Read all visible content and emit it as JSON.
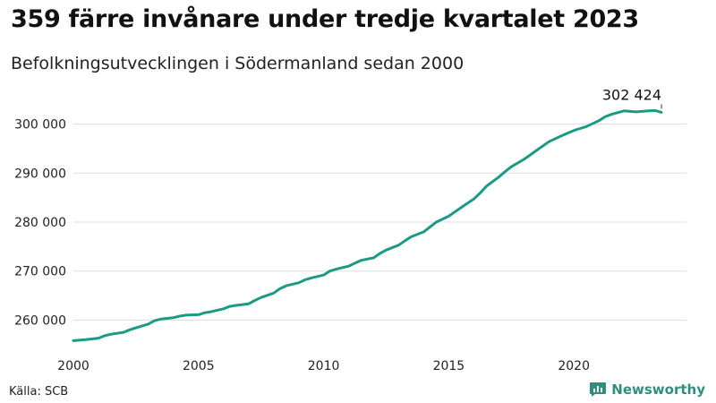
{
  "header": {
    "title": "359 färre invånare under tredje kvartalet 2023",
    "subtitle": "Befolkningsutvecklingen i Södermanland sedan 2000"
  },
  "footer": {
    "source": "Källa: SCB",
    "brand": "Newsworthy"
  },
  "colors": {
    "line": "#1d9a86",
    "grid": "#dddddd",
    "brand": "#2e8f7f"
  },
  "icons": {
    "brand_logo": "bar-chart-speech-bubble-icon"
  },
  "chart_data": {
    "type": "line",
    "title": "359 färre invånare under tredje kvartalet 2023",
    "subtitle": "Befolkningsutvecklingen i Södermanland sedan 2000",
    "xlabel": "",
    "ylabel": "",
    "xlim": [
      2000,
      2024.5
    ],
    "ylim": [
      255500,
      304500
    ],
    "x_ticks": [
      2000,
      2005,
      2010,
      2015,
      2020
    ],
    "y_ticks": [
      260000,
      270000,
      280000,
      290000,
      300000
    ],
    "y_tick_labels": [
      "260 000",
      "270 000",
      "280 000",
      "290 000",
      "300 000"
    ],
    "grid": "horizontal",
    "legend": "none",
    "annotation": {
      "text": "302 424",
      "x": 2023.5,
      "y": 302424
    },
    "series": [
      {
        "x": [
          2000.0,
          2000.5,
          2001.0,
          2001.25,
          2001.5,
          2002.0,
          2002.25,
          2002.5,
          2003.0,
          2003.25,
          2003.5,
          2004.0,
          2004.25,
          2004.5,
          2005.0,
          2005.25,
          2005.5,
          2006.0,
          2006.25,
          2006.5,
          2007.0,
          2007.25,
          2007.5,
          2008.0,
          2008.25,
          2008.5,
          2009.0,
          2009.25,
          2009.5,
          2010.0,
          2010.25,
          2010.5,
          2011.0,
          2011.25,
          2011.5,
          2012.0,
          2012.25,
          2012.5,
          2013.0,
          2013.25,
          2013.5,
          2014.0,
          2014.25,
          2014.5,
          2015.0,
          2015.25,
          2015.5,
          2016.0,
          2016.25,
          2016.5,
          2017.0,
          2017.25,
          2017.5,
          2018.0,
          2018.25,
          2018.5,
          2019.0,
          2019.25,
          2019.5,
          2020.0,
          2020.25,
          2020.5,
          2021.0,
          2021.25,
          2021.5,
          2022.0,
          2022.25,
          2022.5,
          2023.0,
          2023.25,
          2023.5
        ],
        "y": [
          255800,
          256000,
          256300,
          256800,
          257100,
          257500,
          258000,
          258400,
          259200,
          259900,
          260200,
          260500,
          260800,
          261000,
          261100,
          261500,
          261700,
          262300,
          262800,
          263000,
          263300,
          264000,
          264600,
          265500,
          266400,
          267000,
          267600,
          268200,
          268600,
          269200,
          270000,
          270400,
          271000,
          271600,
          272200,
          272700,
          273600,
          274300,
          275300,
          276200,
          277000,
          278000,
          279000,
          280000,
          281200,
          282100,
          283000,
          284700,
          285900,
          287300,
          289200,
          290300,
          291300,
          292800,
          293700,
          294600,
          296400,
          297000,
          297600,
          298700,
          299100,
          299500,
          300700,
          301500,
          302000,
          302700,
          302600,
          302500,
          302700,
          302780,
          302424
        ]
      }
    ]
  }
}
